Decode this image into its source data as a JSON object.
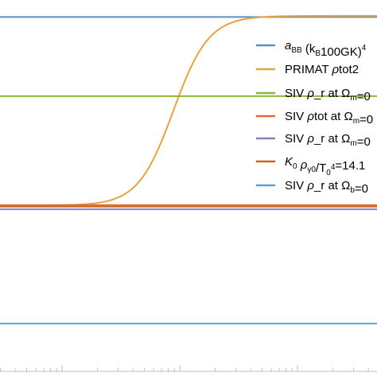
{
  "chart_data": {
    "type": "line",
    "title": "",
    "xlabel": "",
    "ylabel": "",
    "x_scale": "log",
    "grid": false,
    "legend_position": "right",
    "series": [
      {
        "name": "a_BB (k_B 100GK)^4",
        "legend_main": "a",
        "legend_sub1": "BB",
        "legend_mid": " (k",
        "legend_sub2": "B",
        "legend_tail": "100GK)",
        "legend_sup": "4",
        "color": "#5b8fc6",
        "style": "hline",
        "y": 0.955
      },
      {
        "name": "PRIMAT ρtot2",
        "legend_main": "PRIMAT ",
        "legend_italic": "ρ",
        "legend_tail": "tot2",
        "color": "#e8a33d",
        "style": "sigmoid",
        "low": 0.455,
        "high": 0.958
      },
      {
        "name": "SIV ρ_r at Ω_m=0",
        "legend_main": "SIV ",
        "legend_italic": "ρ",
        "legend_tail": "_r at Ω",
        "legend_sub": "m",
        "legend_end": "=0",
        "color": "#8db63c",
        "style": "hline",
        "y": 0.745
      },
      {
        "name": "SIV ρtot at Ω_m=0",
        "legend_main": "SIV ",
        "legend_italic": "ρ",
        "legend_tail": "tot at Ω",
        "legend_sub": "m",
        "legend_end": "=0",
        "color": "#e2683c",
        "style": "hline",
        "y": 0.456
      },
      {
        "name": "SIV ρ_r at Ω_m=0",
        "legend_main": "SIV ",
        "legend_italic": "ρ",
        "legend_tail": "_r at Ω",
        "legend_sub": "m",
        "legend_end": "=0",
        "color": "#8e7cc3",
        "style": "hline",
        "y": 0.445
      },
      {
        "name": "K0 ρ_γ0/T0^4=14.1",
        "legend_main": "K",
        "legend_sub1": "0",
        "legend_italic": " ρ",
        "legend_sub2": "γ0",
        "legend_tail": "/T",
        "legend_sub3": "0",
        "legend_sup": "4",
        "legend_end": "=14.1",
        "color": "#c6681d",
        "style": "hline",
        "y": 0.452
      },
      {
        "name": "SIV ρ_r at Ω_b=0",
        "legend_main": "SIV ",
        "legend_italic": "ρ",
        "legend_tail": "_r at Ω",
        "legend_sub": "b",
        "legend_end": "=0",
        "color": "#5ea0d6",
        "style": "hline",
        "y": 0.142
      }
    ]
  }
}
